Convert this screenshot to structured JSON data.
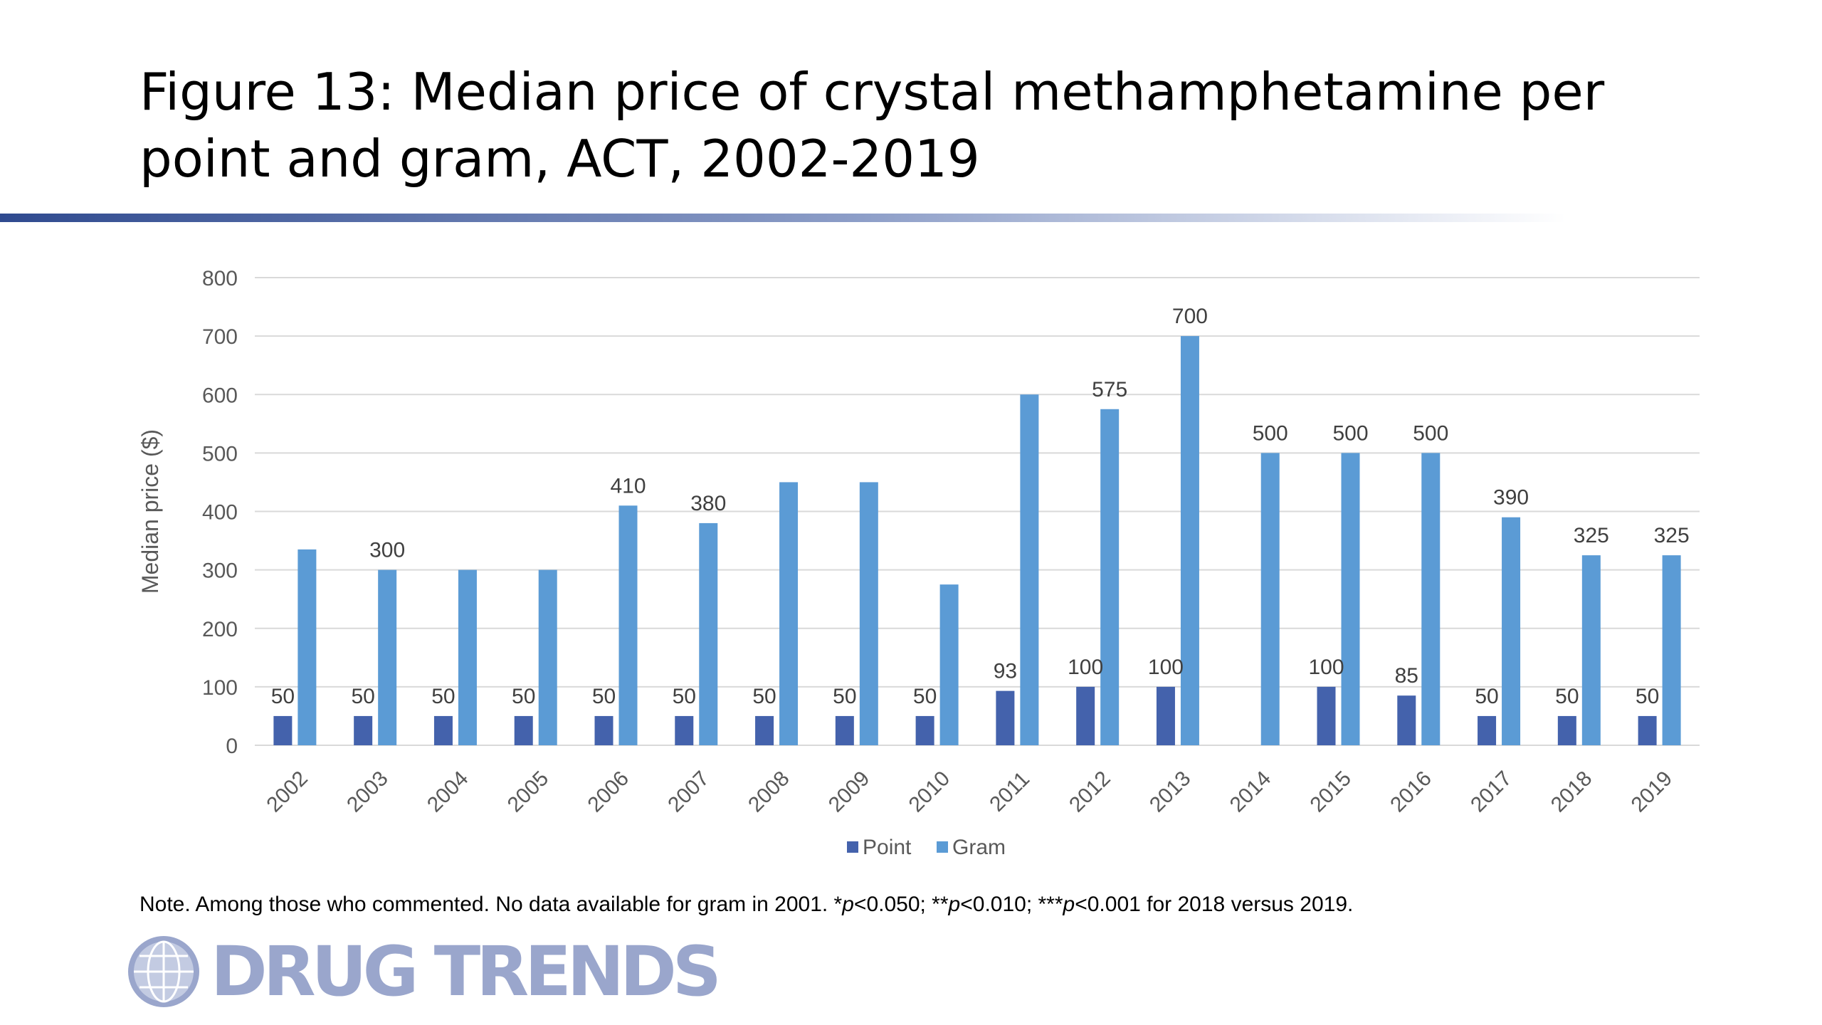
{
  "slide": {
    "title": "Figure 13: Median price of crystal methamphetamine per point and gram, ACT, 2002-2019",
    "note_prefix": "Note. Among those who commented. No data available for gram in 2001. *",
    "note_p1": "p",
    "note_mid1": "<0.050; **",
    "note_p2": "p",
    "note_mid2": "<0.010; ***",
    "note_p3": "p",
    "note_suffix": "<0.001 for 2018 versus 2019.",
    "logo_text": "DRUG TRENDS"
  },
  "colors": {
    "point": "#4462ac",
    "gram": "#5b9bd5",
    "grid": "#d9d9d9",
    "axis_text": "#595959",
    "label_text": "#404040",
    "logo": "#9aa6cc"
  },
  "chart_data": {
    "type": "bar",
    "categories": [
      "2002",
      "2003",
      "2004",
      "2005",
      "2006",
      "2007",
      "2008",
      "2009",
      "2010",
      "2011",
      "2012",
      "2013",
      "2014",
      "2015",
      "2016",
      "2017",
      "2018",
      "2019"
    ],
    "series": [
      {
        "name": "Point",
        "values": [
          50,
          50,
          50,
          50,
          50,
          50,
          50,
          50,
          50,
          93,
          100,
          100,
          null,
          100,
          85,
          50,
          50,
          50
        ],
        "labels": [
          "50",
          "50",
          "50",
          "50",
          "50",
          "50",
          "50",
          "50",
          "50",
          "93",
          "100",
          "100",
          null,
          "100",
          "85",
          "50",
          "50",
          "50"
        ]
      },
      {
        "name": "Gram",
        "values": [
          335,
          300,
          300,
          300,
          410,
          380,
          450,
          450,
          275,
          600,
          575,
          700,
          500,
          500,
          500,
          390,
          325,
          325
        ],
        "labels": [
          null,
          "300",
          null,
          null,
          "410",
          "380",
          null,
          null,
          null,
          null,
          "575",
          "700",
          "500",
          "500",
          "500",
          "390",
          "325",
          "325"
        ]
      }
    ],
    "ylabel": "Median price ($)",
    "xlabel": "",
    "ylim": [
      0,
      800
    ],
    "yticks": [
      0,
      100,
      200,
      300,
      400,
      500,
      600,
      700,
      800
    ],
    "grid": true,
    "legend_position": "bottom"
  }
}
